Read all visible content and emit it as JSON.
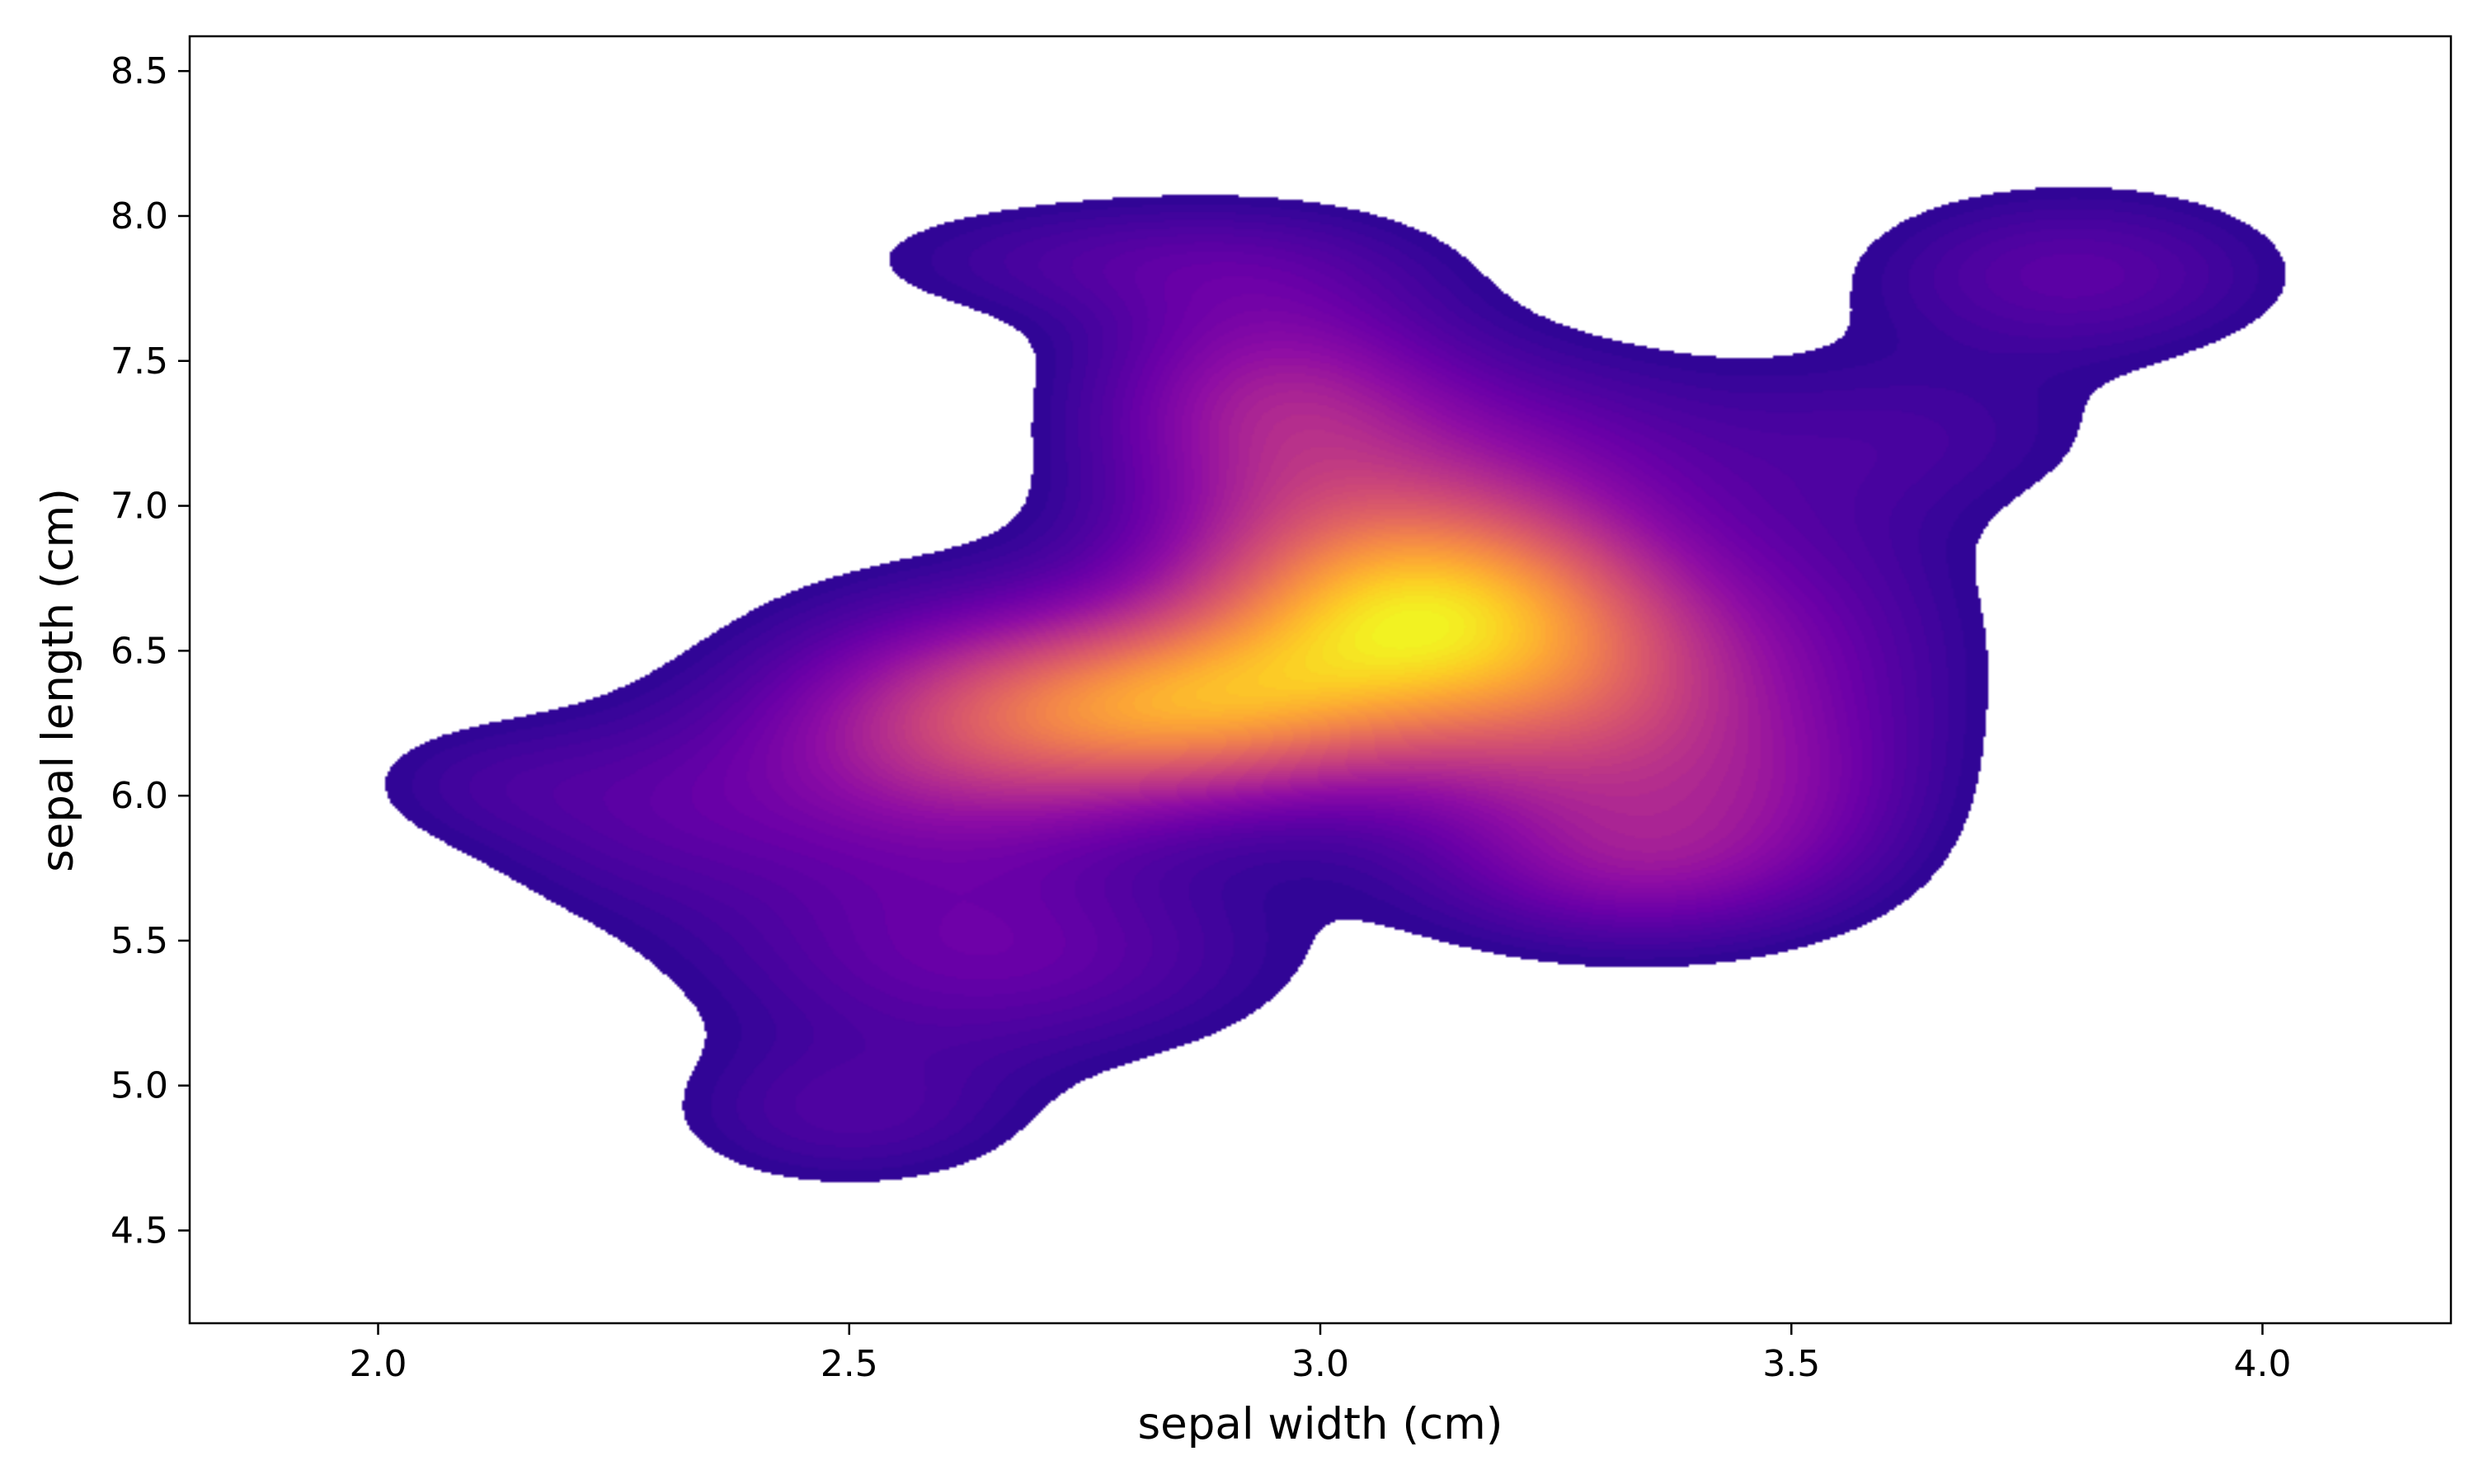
{
  "chart_data": {
    "type": "kde-density-contour",
    "title": "",
    "xlabel": "sepal width (cm)",
    "ylabel": "sepal length (cm)",
    "xlim": [
      1.8,
      4.2
    ],
    "ylim": [
      4.18,
      8.62
    ],
    "xticks": [
      2.0,
      2.5,
      3.0,
      3.5,
      4.0
    ],
    "yticks": [
      4.5,
      5.0,
      5.5,
      6.0,
      6.5,
      7.0,
      7.5,
      8.0,
      8.5
    ],
    "tick_labels_x": [
      "2.0",
      "2.5",
      "3.0",
      "3.5",
      "4.0"
    ],
    "tick_labels_y": [
      "4.5",
      "5.0",
      "5.5",
      "6.0",
      "6.5",
      "7.0",
      "7.5",
      "8.0",
      "8.5"
    ],
    "colormap": "plasma",
    "fill": true,
    "levels": 60,
    "threshold": 0.05,
    "grid": false,
    "legend": false,
    "colors": {
      "low": "#1e0890",
      "mid": "#9b179e",
      "high": "#f0f921"
    },
    "density_peaks": [
      {
        "x": 3.1,
        "y": 6.65,
        "relative_density": 1.0
      },
      {
        "x": 2.85,
        "y": 6.3,
        "relative_density": 0.88
      },
      {
        "x": 2.95,
        "y": 7.35,
        "relative_density": 0.42
      },
      {
        "x": 3.8,
        "y": 7.8,
        "relative_density": 0.2
      },
      {
        "x": 2.5,
        "y": 4.9,
        "relative_density": 0.14
      },
      {
        "x": 2.3,
        "y": 5.95,
        "relative_density": 0.15
      },
      {
        "x": 3.35,
        "y": 5.7,
        "relative_density": 0.3
      }
    ]
  }
}
